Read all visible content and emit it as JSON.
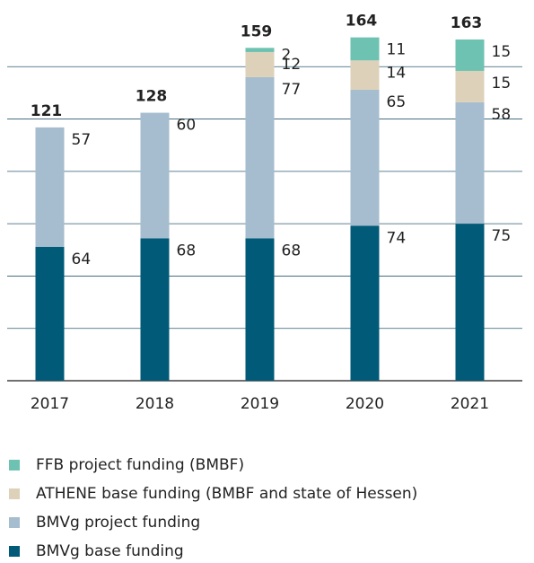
{
  "chart_data": {
    "type": "stacked_bar",
    "categories": [
      "2017",
      "2018",
      "2019",
      "2020",
      "2021"
    ],
    "series": [
      {
        "name": "BMVg base funding",
        "color": "#005a78",
        "values": [
          64,
          68,
          68,
          74,
          75
        ]
      },
      {
        "name": "BMVg project funding",
        "color": "#a5bdce",
        "values": [
          57,
          60,
          77,
          65,
          58
        ]
      },
      {
        "name": "ATHENE base funding (BMBF and state of Hessen)",
        "color": "#ddd1b9",
        "values": [
          null,
          null,
          12,
          14,
          15
        ]
      },
      {
        "name": "FFB project funding (BMBF)",
        "color": "#6ec2b1",
        "values": [
          null,
          null,
          2,
          11,
          15
        ]
      }
    ],
    "totals": [
      121,
      128,
      159,
      164,
      163
    ],
    "ylim": [
      0,
      175
    ],
    "yticks": [
      0,
      25,
      50,
      75,
      100,
      125,
      150
    ],
    "grid": true
  }
}
